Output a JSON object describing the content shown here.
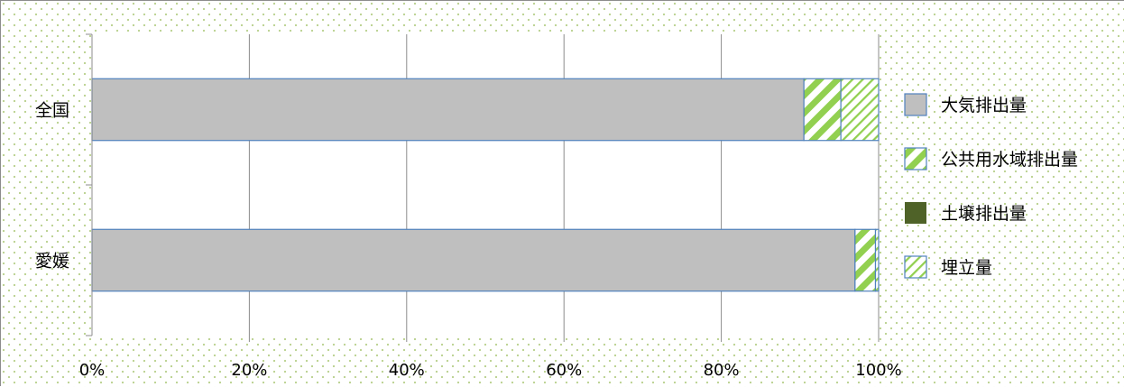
{
  "chart_data": {
    "type": "bar",
    "orientation": "horizontal",
    "stacked": "percent",
    "categories": [
      "全国",
      "愛媛"
    ],
    "series": [
      {
        "name": "大気排出量",
        "values": [
          90.5,
          97.0
        ],
        "color": "#bfbfbf",
        "pattern": "solid"
      },
      {
        "name": "公共用水域排出量",
        "values": [
          4.7,
          2.6
        ],
        "color": "#92d050",
        "pattern": "wide-diagonal"
      },
      {
        "name": "土壌排出量",
        "values": [
          0.0,
          0.0
        ],
        "color": "#4f6228",
        "pattern": "solid"
      },
      {
        "name": "埋立量",
        "values": [
          4.8,
          0.4
        ],
        "color": "#92d050",
        "pattern": "light-diagonal"
      }
    ],
    "x_ticks": [
      "0%",
      "20%",
      "40%",
      "60%",
      "80%",
      "100%"
    ],
    "xlim": [
      0,
      100
    ],
    "grid": true,
    "legend_position": "right",
    "bar_border_color": "#4f81bd",
    "plot_background": "#ffffff",
    "chart_background": "dotted-green",
    "title": "",
    "xlabel": "",
    "ylabel": ""
  }
}
